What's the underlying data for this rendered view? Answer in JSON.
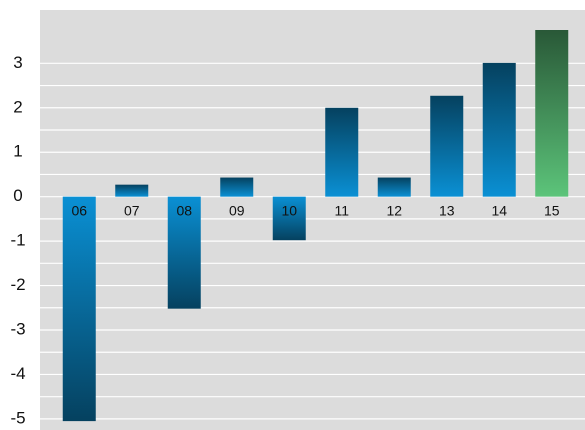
{
  "chart_data": {
    "type": "bar",
    "categories": [
      "06",
      "07",
      "08",
      "09",
      "10",
      "11",
      "12",
      "13",
      "14",
      "15"
    ],
    "values": [
      -5.05,
      0.27,
      -2.52,
      0.43,
      -0.98,
      2.0,
      0.43,
      2.27,
      3.01,
      3.75
    ],
    "colors": [
      "#0a90d4",
      "#0a90d4",
      "#0a90d4",
      "#0a90d4",
      "#0a90d4",
      "#0a90d4",
      "#0a90d4",
      "#0a90d4",
      "#0a90d4",
      "#5cc47a"
    ],
    "ylim": [
      -5.25,
      4.2
    ],
    "yticks": [
      -5,
      -4,
      -3,
      -2,
      -1,
      0,
      1,
      2,
      3
    ],
    "grid": true
  }
}
